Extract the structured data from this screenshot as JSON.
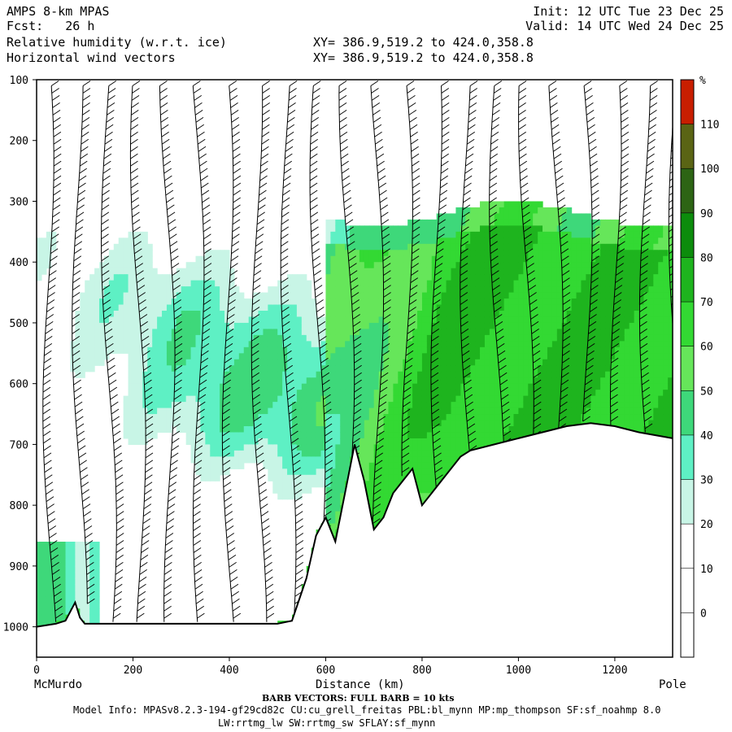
{
  "header": {
    "model": "AMPS 8-km MPAS",
    "fcst_label": "Fcst:",
    "fcst_value": "26 h",
    "field1": "Relative humidity (w.r.t. ice)",
    "field2": "Horizontal wind vectors",
    "init": "Init: 12 UTC Tue 23 Dec 25",
    "valid": "Valid: 14 UTC Wed 24 Dec 25",
    "xy1": "XY= 386.9,519.2 to 424.0,358.8",
    "xy2": "XY= 386.9,519.2 to 424.0,358.8"
  },
  "footer": {
    "left_end": "McMurdo",
    "right_end": "Pole",
    "xlabel": "Distance (km)",
    "barb_note": "BARB VECTORS:  FULL BARB = 10 kts",
    "model_info": "Model Info: MPASv8.2.3-194-gf29cd82c CU:cu_grell_freitas PBL:bl_mynn MP:mp_thompson SF:sf_noahmp 8.0",
    "model_info2": "LW:rrtmg_lw SW:rrtmg_sw SFLAY:sf_mynn"
  },
  "colorbar": {
    "unit": "%",
    "levels": [
      "0",
      "10",
      "20",
      "30",
      "40",
      "50",
      "60",
      "70",
      "80",
      "90",
      "100",
      "110"
    ],
    "colors": [
      "#ffffff",
      "#ffffff",
      "#ffffff",
      "#c8f5e6",
      "#5ef0c4",
      "#3ed87a",
      "#66e65a",
      "#33d933",
      "#1eb41e",
      "#0c8c0c",
      "#2d6414",
      "#5a6414",
      "#c81e00"
    ]
  },
  "chart_data": {
    "type": "heatmap",
    "title": "Relative humidity (w.r.t. ice)",
    "xlabel": "Distance (km)",
    "ylabel": "",
    "xlim": [
      0,
      1320
    ],
    "ylim": [
      1050,
      100
    ],
    "x_ticks": [
      "0",
      "200",
      "400",
      "600",
      "800",
      "1000",
      "1200"
    ],
    "y_ticks": [
      "100",
      "200",
      "300",
      "400",
      "500",
      "600",
      "700",
      "800",
      "900",
      "1000"
    ],
    "terrain_pressure_hPa": {
      "x": [
        0,
        40,
        60,
        80,
        90,
        100,
        120,
        200,
        300,
        400,
        500,
        530,
        560,
        580,
        600,
        620,
        640,
        660,
        680,
        700,
        720,
        740,
        760,
        780,
        800,
        820,
        840,
        860,
        880,
        900,
        950,
        1000,
        1050,
        1100,
        1150,
        1200,
        1250,
        1320
      ],
      "values": [
        1000,
        995,
        990,
        960,
        985,
        995,
        995,
        995,
        995,
        995,
        995,
        990,
        920,
        850,
        820,
        860,
        780,
        700,
        760,
        840,
        820,
        780,
        760,
        740,
        800,
        780,
        760,
        740,
        720,
        710,
        700,
        690,
        680,
        670,
        665,
        670,
        680,
        690
      ]
    },
    "humid_regions": [
      {
        "label": "40-60%",
        "x": [
          10,
          560
        ],
        "p": [
          330,
          800
        ]
      },
      {
        "label": "60-90%",
        "x": [
          620,
          1320
        ],
        "p": [
          320,
          680
        ]
      },
      {
        "label": "40-60%",
        "x": [
          0,
          130
        ],
        "p": [
          870,
          1000
        ]
      }
    ],
    "wind_barbs": "Horizontal wind vectors, full barb = 10 kts"
  }
}
